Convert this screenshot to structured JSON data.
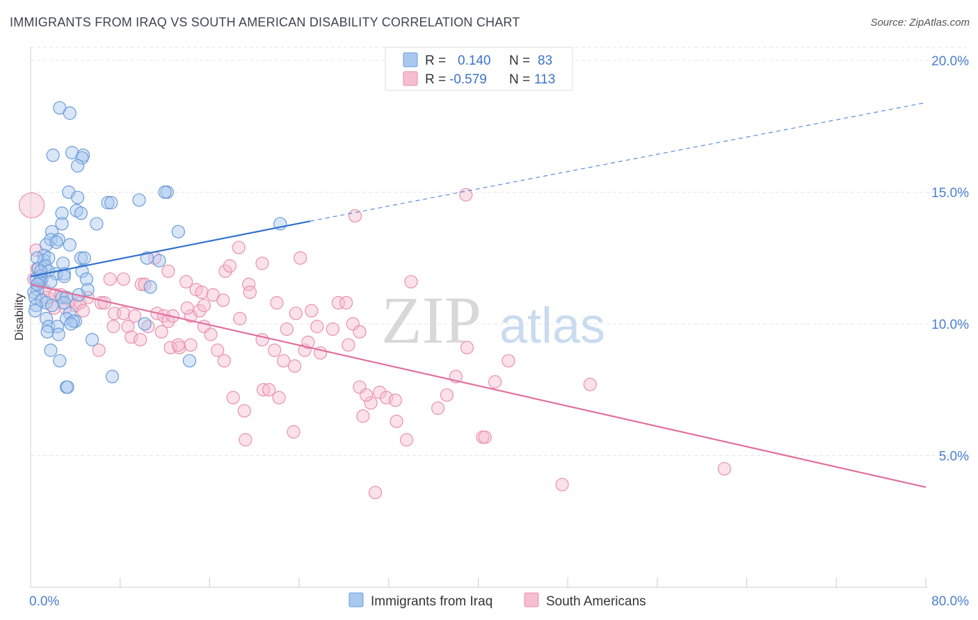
{
  "title": "IMMIGRANTS FROM IRAQ VS SOUTH AMERICAN DISABILITY CORRELATION CHART",
  "source": "Source: ZipAtlas.com",
  "watermark": {
    "zip": "ZIP",
    "atlas": "atlas"
  },
  "legend": {
    "rows": [
      {
        "r_label": "R =",
        "r_value": "0.140",
        "n_label": "N =",
        "n_value": "83",
        "color": "#a9c8f0",
        "stroke": "#6a9bd8"
      },
      {
        "r_label": "R =",
        "r_value": "-0.579",
        "n_label": "N =",
        "n_value": "113",
        "color": "#f7bdd0",
        "stroke": "#e890ad"
      }
    ]
  },
  "bottom_legend": [
    "Immigrants from Iraq",
    "South Americans"
  ],
  "chart_data": {
    "type": "scatter",
    "xlabel": "",
    "ylabel": "Disability",
    "xlim": [
      0,
      80
    ],
    "ylim": [
      0,
      20.5
    ],
    "x_tick_labels": [
      "0.0%",
      "80.0%"
    ],
    "y_ticks": [
      5,
      10,
      15,
      20
    ],
    "y_tick_labels": [
      "5.0%",
      "10.0%",
      "15.0%",
      "20.0%"
    ],
    "grid": true,
    "legend_position": "top-center",
    "series": [
      {
        "name": "Immigrants from Iraq",
        "color": "#a9c8f0",
        "stroke": "#6a9bd8",
        "line_color": "#2f6fcf",
        "trend": {
          "x0": 0,
          "y0": 11.8,
          "x1": 25,
          "y1": 13.9,
          "dash_x1": 80,
          "dash_y1": 18.4
        },
        "points": [
          [
            2.6,
            18.2
          ],
          [
            3.5,
            18.0
          ],
          [
            2.0,
            16.4
          ],
          [
            3.7,
            16.5
          ],
          [
            4.7,
            16.4
          ],
          [
            4.6,
            16.3
          ],
          [
            4.2,
            16.0
          ],
          [
            3.4,
            15.0
          ],
          [
            12.2,
            15.0
          ],
          [
            12.0,
            15.0
          ],
          [
            4.2,
            14.8
          ],
          [
            6.9,
            14.6
          ],
          [
            7.2,
            14.6
          ],
          [
            9.7,
            14.7
          ],
          [
            2.8,
            14.2
          ],
          [
            4.1,
            14.3
          ],
          [
            4.5,
            14.2
          ],
          [
            2.8,
            13.8
          ],
          [
            5.9,
            13.8
          ],
          [
            13.2,
            13.5
          ],
          [
            22.3,
            13.8
          ],
          [
            1.9,
            13.5
          ],
          [
            1.8,
            13.2
          ],
          [
            2.5,
            13.2
          ],
          [
            1.4,
            13.0
          ],
          [
            2.3,
            13.1
          ],
          [
            3.5,
            13.0
          ],
          [
            1.2,
            12.6
          ],
          [
            1.2,
            12.4
          ],
          [
            0.6,
            12.5
          ],
          [
            1.6,
            12.5
          ],
          [
            4.5,
            12.5
          ],
          [
            4.8,
            12.5
          ],
          [
            10.4,
            12.5
          ],
          [
            11.5,
            12.4
          ],
          [
            2.9,
            12.3
          ],
          [
            0.7,
            12.1
          ],
          [
            1.3,
            12.2
          ],
          [
            1.6,
            12.0
          ],
          [
            0.9,
            11.8
          ],
          [
            2.3,
            11.9
          ],
          [
            3.0,
            11.9
          ],
          [
            4.6,
            12.0
          ],
          [
            1.0,
            11.7
          ],
          [
            0.5,
            11.7
          ],
          [
            0.8,
            11.6
          ],
          [
            5.0,
            11.7
          ],
          [
            3.0,
            11.8
          ],
          [
            0.6,
            11.3
          ],
          [
            0.3,
            11.2
          ],
          [
            0.4,
            11.0
          ],
          [
            5.1,
            11.3
          ],
          [
            10.7,
            11.4
          ],
          [
            1.0,
            10.9
          ],
          [
            1.4,
            10.8
          ],
          [
            2.8,
            11.0
          ],
          [
            3.2,
            11.0
          ],
          [
            4.3,
            11.1
          ],
          [
            0.5,
            10.7
          ],
          [
            1.9,
            10.7
          ],
          [
            3.0,
            10.8
          ],
          [
            3.5,
            10.4
          ],
          [
            1.4,
            10.2
          ],
          [
            3.2,
            10.2
          ],
          [
            4.0,
            10.1
          ],
          [
            3.8,
            10.1
          ],
          [
            3.6,
            10.0
          ],
          [
            10.2,
            10.0
          ],
          [
            1.6,
            9.9
          ],
          [
            2.4,
            9.9
          ],
          [
            1.5,
            9.7
          ],
          [
            2.5,
            9.6
          ],
          [
            5.5,
            9.4
          ],
          [
            1.8,
            9.0
          ],
          [
            14.2,
            8.6
          ],
          [
            2.6,
            8.6
          ],
          [
            7.3,
            8.0
          ],
          [
            3.2,
            7.6
          ],
          [
            3.3,
            7.6
          ],
          [
            0.4,
            10.5
          ],
          [
            0.6,
            11.5
          ],
          [
            0.9,
            12.0
          ],
          [
            1.8,
            11.6
          ]
        ]
      },
      {
        "name": "South Americans",
        "color": "#f7bdd0",
        "stroke": "#e890ad",
        "line_color": "#e0709a",
        "trend": {
          "x0": 0,
          "y0": 11.5,
          "x1": 80,
          "y1": 3.8
        },
        "points": [
          [
            0.1,
            14.5
          ],
          [
            0.5,
            12.8
          ],
          [
            0.6,
            12.1
          ],
          [
            1.0,
            11.9
          ],
          [
            0.9,
            11.6
          ],
          [
            1.2,
            11.3
          ],
          [
            1.5,
            11.0
          ],
          [
            2.2,
            11.1
          ],
          [
            2.7,
            11.1
          ],
          [
            3.6,
            10.9
          ],
          [
            4.0,
            10.7
          ],
          [
            4.4,
            10.8
          ],
          [
            5.1,
            11.0
          ],
          [
            6.3,
            10.8
          ],
          [
            6.6,
            10.8
          ],
          [
            7.1,
            11.7
          ],
          [
            8.3,
            11.7
          ],
          [
            2.1,
            10.6
          ],
          [
            3.1,
            10.6
          ],
          [
            4.7,
            10.5
          ],
          [
            7.5,
            10.4
          ],
          [
            8.3,
            10.4
          ],
          [
            9.3,
            10.3
          ],
          [
            11.3,
            10.4
          ],
          [
            11.9,
            10.3
          ],
          [
            12.3,
            10.1
          ],
          [
            7.4,
            9.9
          ],
          [
            8.7,
            9.9
          ],
          [
            9.0,
            9.5
          ],
          [
            9.8,
            9.4
          ],
          [
            10.5,
            9.9
          ],
          [
            11.7,
            9.7
          ],
          [
            6.1,
            9.0
          ],
          [
            12.5,
            9.1
          ],
          [
            13.3,
            9.1
          ],
          [
            14.3,
            9.2
          ],
          [
            16.7,
            9.0
          ],
          [
            17.3,
            8.6
          ],
          [
            14.3,
            10.3
          ],
          [
            15.1,
            10.5
          ],
          [
            15.5,
            9.9
          ],
          [
            16.1,
            9.6
          ],
          [
            17.2,
            10.9
          ],
          [
            18.7,
            10.2
          ],
          [
            9.9,
            11.5
          ],
          [
            10.2,
            11.5
          ],
          [
            11.1,
            12.5
          ],
          [
            12.3,
            12.0
          ],
          [
            13.9,
            11.6
          ],
          [
            14.0,
            10.6
          ],
          [
            14.8,
            11.3
          ],
          [
            15.5,
            10.7
          ],
          [
            15.3,
            11.2
          ],
          [
            16.3,
            11.1
          ],
          [
            17.4,
            12.0
          ],
          [
            17.8,
            12.2
          ],
          [
            18.6,
            12.9
          ],
          [
            19.5,
            11.5
          ],
          [
            19.6,
            11.2
          ],
          [
            20.7,
            12.3
          ],
          [
            20.7,
            9.4
          ],
          [
            21.8,
            9.0
          ],
          [
            22.0,
            10.8
          ],
          [
            22.9,
            9.8
          ],
          [
            23.7,
            10.4
          ],
          [
            24.1,
            12.5
          ],
          [
            22.6,
            8.6
          ],
          [
            23.6,
            8.4
          ],
          [
            24.5,
            9.0
          ],
          [
            24.8,
            9.3
          ],
          [
            25.1,
            10.5
          ],
          [
            25.6,
            9.9
          ],
          [
            25.9,
            8.9
          ],
          [
            27.0,
            9.8
          ],
          [
            27.5,
            10.8
          ],
          [
            28.2,
            10.8
          ],
          [
            28.8,
            10.0
          ],
          [
            29.4,
            9.7
          ],
          [
            30.4,
            7.0
          ],
          [
            28.4,
            9.2
          ],
          [
            29.0,
            14.1
          ],
          [
            29.4,
            7.6
          ],
          [
            30.0,
            7.3
          ],
          [
            29.7,
            6.5
          ],
          [
            31.2,
            7.4
          ],
          [
            31.8,
            7.2
          ],
          [
            32.6,
            7.1
          ],
          [
            32.7,
            6.3
          ],
          [
            33.6,
            5.6
          ],
          [
            30.8,
            3.6
          ],
          [
            34.0,
            11.6
          ],
          [
            36.4,
            6.8
          ],
          [
            37.2,
            7.3
          ],
          [
            38.0,
            8.0
          ],
          [
            38.9,
            14.9
          ],
          [
            39.0,
            9.1
          ],
          [
            40.4,
            5.7
          ],
          [
            40.6,
            5.7
          ],
          [
            41.5,
            7.8
          ],
          [
            42.7,
            8.6
          ],
          [
            47.5,
            3.9
          ],
          [
            50.0,
            7.7
          ],
          [
            62.0,
            4.5
          ],
          [
            18.1,
            7.2
          ],
          [
            19.1,
            6.7
          ],
          [
            19.2,
            5.6
          ],
          [
            20.8,
            7.5
          ],
          [
            21.3,
            7.5
          ],
          [
            22.2,
            7.2
          ],
          [
            23.5,
            5.9
          ],
          [
            13.2,
            9.2
          ],
          [
            12.7,
            10.3
          ],
          [
            0.3,
            11.7
          ]
        ]
      }
    ]
  }
}
